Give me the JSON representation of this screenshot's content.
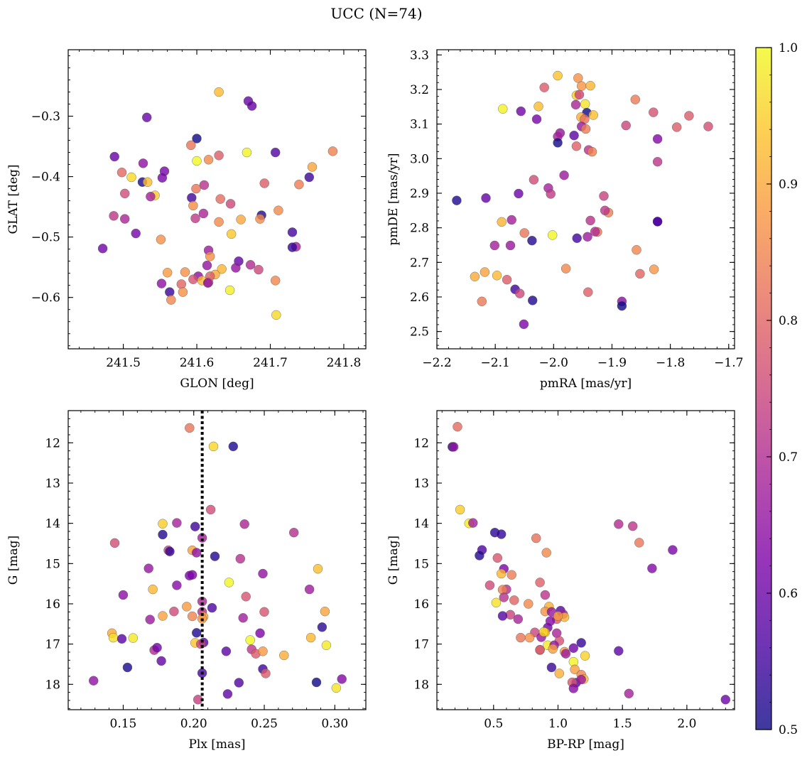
{
  "figure": {
    "title": "UCC (N=74)"
  },
  "colorbar": {
    "min": 0.5,
    "max": 1.0,
    "ticks": [
      "0.5",
      "0.6",
      "0.7",
      "0.8",
      "0.9",
      "1.0"
    ]
  },
  "chart_data": [
    {
      "type": "scatter",
      "name": "glon-glat",
      "xlabel": "GLON [deg]",
      "ylabel": "GLAT [deg]",
      "xlim": [
        241.425,
        241.83
      ],
      "ylim": [
        -0.685,
        -0.19
      ],
      "invert_y": false,
      "xticks": [
        241.5,
        241.6,
        241.7,
        241.8
      ],
      "xtick_labels": [
        "241.5",
        "241.6",
        "241.7",
        "241.8"
      ],
      "xminor_step": 0.02,
      "yticks": [
        -0.3,
        -0.4,
        -0.5,
        -0.6
      ],
      "ytick_labels": [
        "−0.3",
        "−0.4",
        "−0.5",
        "−0.6"
      ],
      "yminor_step": 0.02,
      "points": [
        [
          241.63,
          -0.26
        ],
        [
          241.67,
          -0.275
        ],
        [
          241.675,
          -0.283
        ],
        [
          241.532,
          -0.302
        ],
        [
          241.6,
          -0.337
        ],
        [
          241.592,
          -0.348
        ],
        [
          241.785,
          -0.358
        ],
        [
          241.668,
          -0.36
        ],
        [
          241.707,
          -0.36
        ],
        [
          241.63,
          -0.365
        ],
        [
          241.488,
          -0.367
        ],
        [
          241.616,
          -0.372
        ],
        [
          241.6,
          -0.374
        ],
        [
          241.527,
          -0.378
        ],
        [
          241.757,
          -0.384
        ],
        [
          241.556,
          -0.391
        ],
        [
          241.498,
          -0.393
        ],
        [
          241.511,
          -0.401
        ],
        [
          241.553,
          -0.402
        ],
        [
          241.753,
          -0.401
        ],
        [
          241.526,
          -0.409
        ],
        [
          241.533,
          -0.409
        ],
        [
          241.692,
          -0.411
        ],
        [
          241.739,
          -0.413
        ],
        [
          241.61,
          -0.414
        ],
        [
          241.599,
          -0.42
        ],
        [
          241.502,
          -0.428
        ],
        [
          241.543,
          -0.431
        ],
        [
          241.537,
          -0.433
        ],
        [
          241.593,
          -0.435
        ],
        [
          241.632,
          -0.437
        ],
        [
          241.646,
          -0.445
        ],
        [
          241.595,
          -0.448
        ],
        [
          241.711,
          -0.456
        ],
        [
          241.609,
          -0.461
        ],
        [
          241.688,
          -0.464
        ],
        [
          241.487,
          -0.465
        ],
        [
          241.502,
          -0.47
        ],
        [
          241.598,
          -0.469
        ],
        [
          241.686,
          -0.47
        ],
        [
          241.63,
          -0.475
        ],
        [
          241.66,
          -0.471
        ],
        [
          241.517,
          -0.494
        ],
        [
          241.647,
          -0.495
        ],
        [
          241.73,
          -0.492
        ],
        [
          241.551,
          -0.504
        ],
        [
          241.735,
          -0.516
        ],
        [
          241.73,
          -0.517
        ],
        [
          241.472,
          -0.519
        ],
        [
          241.616,
          -0.522
        ],
        [
          241.618,
          -0.532
        ],
        [
          241.657,
          -0.54
        ],
        [
          241.673,
          -0.546
        ],
        [
          241.614,
          -0.547
        ],
        [
          241.634,
          -0.553
        ],
        [
          241.684,
          -0.554
        ],
        [
          241.56,
          -0.559
        ],
        [
          241.584,
          -0.558
        ],
        [
          241.625,
          -0.562
        ],
        [
          241.602,
          -0.565
        ],
        [
          241.618,
          -0.565
        ],
        [
          241.595,
          -0.57
        ],
        [
          241.607,
          -0.572
        ],
        [
          241.707,
          -0.572
        ],
        [
          241.616,
          -0.575
        ],
        [
          241.615,
          -0.576
        ],
        [
          241.552,
          -0.577
        ],
        [
          241.579,
          -0.578
        ],
        [
          241.645,
          -0.588
        ],
        [
          241.563,
          -0.591
        ],
        [
          241.581,
          -0.591
        ],
        [
          241.565,
          -0.604
        ],
        [
          241.708,
          -0.629
        ],
        [
          241.653,
          -0.551
        ]
      ]
    },
    {
      "type": "scatter",
      "name": "pmra-pmde",
      "xlabel": "pmRA [mas/yr]",
      "ylabel": "pmDE [mas/yr]",
      "xlim": [
        -2.2,
        -1.69
      ],
      "ylim": [
        2.45,
        3.315
      ],
      "invert_y": false,
      "xticks": [
        -2.2,
        -2.1,
        -2.0,
        -1.9,
        -1.8,
        -1.7
      ],
      "xtick_labels": [
        "−2.2",
        "−2.1",
        "−2.0",
        "−1.9",
        "−1.8",
        "−1.7"
      ],
      "xminor_step": 0.02,
      "yticks": [
        2.5,
        2.6,
        2.7,
        2.8,
        2.9,
        3.0,
        3.1,
        3.2,
        3.3
      ],
      "ytick_labels": [
        "2.5",
        "2.6",
        "2.7",
        "2.8",
        "2.9",
        "3.0",
        "3.1",
        "3.2",
        "3.3"
      ],
      "yminor_step": 0.02,
      "points": [
        [
          -1.993,
          3.24
        ],
        [
          -1.958,
          3.233
        ],
        [
          -2.016,
          3.206
        ],
        [
          -1.952,
          3.21
        ],
        [
          -1.937,
          3.211
        ],
        [
          -1.961,
          3.183
        ],
        [
          -1.956,
          3.185
        ],
        [
          -1.86,
          3.171
        ],
        [
          -2.026,
          3.151
        ],
        [
          -1.962,
          3.156
        ],
        [
          -1.946,
          3.158
        ],
        [
          -2.087,
          3.144
        ],
        [
          -2.056,
          3.137
        ],
        [
          -1.943,
          3.133
        ],
        [
          -1.829,
          3.134
        ],
        [
          -1.932,
          3.126
        ],
        [
          -1.953,
          3.12
        ],
        [
          -1.768,
          3.124
        ],
        [
          -2.029,
          3.114
        ],
        [
          -1.947,
          3.114
        ],
        [
          -1.952,
          3.093
        ],
        [
          -1.876,
          3.096
        ],
        [
          -1.735,
          3.093
        ],
        [
          -1.789,
          3.091
        ],
        [
          -1.945,
          3.086
        ],
        [
          -1.989,
          3.074
        ],
        [
          -1.965,
          3.067
        ],
        [
          -1.993,
          3.064
        ],
        [
          -1.822,
          3.057
        ],
        [
          -1.993,
          3.046
        ],
        [
          -1.961,
          3.036
        ],
        [
          -1.94,
          3.025
        ],
        [
          -1.934,
          3.02
        ],
        [
          -1.822,
          2.991
        ],
        [
          -1.982,
          2.952
        ],
        [
          -2.034,
          2.939
        ],
        [
          -2.009,
          2.915
        ],
        [
          -2.06,
          2.899
        ],
        [
          -2.005,
          2.898
        ],
        [
          -1.914,
          2.892
        ],
        [
          -2.116,
          2.886
        ],
        [
          -2.166,
          2.879
        ],
        [
          -1.906,
          2.844
        ],
        [
          -1.912,
          2.85
        ],
        [
          -2.072,
          2.823
        ],
        [
          -2.089,
          2.817
        ],
        [
          -1.937,
          2.821
        ],
        [
          -1.822,
          2.818
        ],
        [
          -1.925,
          2.788
        ],
        [
          -2.05,
          2.785
        ],
        [
          -2.002,
          2.779
        ],
        [
          -1.96,
          2.77
        ],
        [
          -1.942,
          2.774
        ],
        [
          -2.037,
          2.763
        ],
        [
          -2.101,
          2.749
        ],
        [
          -2.074,
          2.749
        ],
        [
          -1.858,
          2.736
        ],
        [
          -1.979,
          2.682
        ],
        [
          -1.828,
          2.68
        ],
        [
          -2.118,
          2.672
        ],
        [
          -1.852,
          2.667
        ],
        [
          -2.097,
          2.662
        ],
        [
          -2.135,
          2.659
        ],
        [
          -2.08,
          2.65
        ],
        [
          -2.066,
          2.622
        ],
        [
          -1.941,
          2.614
        ],
        [
          -2.058,
          2.61
        ],
        [
          -2.036,
          2.59
        ],
        [
          -1.883,
          2.587
        ],
        [
          -2.123,
          2.587
        ],
        [
          -1.883,
          2.574
        ],
        [
          -2.051,
          2.521
        ],
        [
          -1.822,
          2.818
        ],
        [
          -1.929,
          2.789
        ]
      ]
    },
    {
      "type": "scatter",
      "name": "plx-g",
      "xlabel": "Plx [mas]",
      "ylabel": "G [mag]",
      "xlim": [
        0.111,
        0.322
      ],
      "ylim": [
        11.2,
        18.63
      ],
      "invert_y": true,
      "vline": 0.206,
      "xticks": [
        0.15,
        0.2,
        0.25,
        0.3
      ],
      "xtick_labels": [
        "0.15",
        "0.20",
        "0.25",
        "0.30"
      ],
      "xminor_step": 0.01,
      "yticks": [
        12,
        13,
        14,
        15,
        16,
        17,
        18
      ],
      "ytick_labels": [
        "12",
        "13",
        "14",
        "15",
        "16",
        "17",
        "18"
      ],
      "yminor_step": 0.2,
      "points": [
        [
          0.197,
          11.63
        ],
        [
          0.214,
          12.09
        ],
        [
          0.228,
          12.09
        ],
        [
          0.212,
          13.66
        ],
        [
          0.178,
          14.01
        ],
        [
          0.188,
          13.99
        ],
        [
          0.236,
          14.02
        ],
        [
          0.271,
          14.23
        ],
        [
          0.201,
          14.08
        ],
        [
          0.206,
          14.36
        ],
        [
          0.144,
          14.49
        ],
        [
          0.178,
          14.28
        ],
        [
          0.182,
          14.67
        ],
        [
          0.199,
          14.67
        ],
        [
          0.202,
          14.73
        ],
        [
          0.215,
          14.82
        ],
        [
          0.233,
          14.88
        ],
        [
          0.168,
          15.12
        ],
        [
          0.288,
          15.13
        ],
        [
          0.249,
          15.25
        ],
        [
          0.199,
          15.28
        ],
        [
          0.188,
          15.54
        ],
        [
          0.225,
          15.47
        ],
        [
          0.171,
          15.64
        ],
        [
          0.282,
          15.64
        ],
        [
          0.15,
          15.78
        ],
        [
          0.237,
          15.82
        ],
        [
          0.206,
          15.94
        ],
        [
          0.195,
          16.07
        ],
        [
          0.186,
          16.19
        ],
        [
          0.206,
          16.2
        ],
        [
          0.25,
          16.2
        ],
        [
          0.293,
          16.19
        ],
        [
          0.199,
          16.31
        ],
        [
          0.207,
          16.32
        ],
        [
          0.235,
          16.35
        ],
        [
          0.169,
          16.39
        ],
        [
          0.206,
          16.37
        ],
        [
          0.178,
          16.3
        ],
        [
          0.291,
          16.58
        ],
        [
          0.202,
          16.72
        ],
        [
          0.142,
          16.73
        ],
        [
          0.247,
          16.73
        ],
        [
          0.283,
          16.84
        ],
        [
          0.143,
          16.84
        ],
        [
          0.149,
          16.87
        ],
        [
          0.157,
          16.85
        ],
        [
          0.201,
          16.97
        ],
        [
          0.207,
          16.96
        ],
        [
          0.294,
          17.03
        ],
        [
          0.172,
          17.15
        ],
        [
          0.174,
          17.09
        ],
        [
          0.223,
          17.18
        ],
        [
          0.241,
          17.13
        ],
        [
          0.244,
          17.24
        ],
        [
          0.249,
          17.18
        ],
        [
          0.264,
          17.28
        ],
        [
          0.177,
          17.42
        ],
        [
          0.249,
          17.62
        ],
        [
          0.251,
          17.73
        ],
        [
          0.206,
          17.72
        ],
        [
          0.153,
          17.58
        ],
        [
          0.232,
          17.96
        ],
        [
          0.287,
          17.95
        ],
        [
          0.129,
          17.91
        ],
        [
          0.305,
          17.87
        ],
        [
          0.301,
          18.09
        ],
        [
          0.224,
          18.24
        ],
        [
          0.203,
          18.38
        ],
        [
          0.183,
          14.7
        ],
        [
          0.197,
          15.3
        ],
        [
          0.213,
          16.1
        ],
        [
          0.205,
          17.0
        ],
        [
          0.24,
          16.9
        ]
      ]
    },
    {
      "type": "scatter",
      "name": "bprp-g",
      "xlabel": "BP-RP [mag]",
      "ylabel": "G [mag]",
      "xlim": [
        0.06,
        2.37
      ],
      "ylim": [
        11.2,
        18.63
      ],
      "invert_y": true,
      "xticks": [
        0.5,
        1.0,
        1.5,
        2.0
      ],
      "xtick_labels": [
        "0.5",
        "1.0",
        "1.5",
        "2.0"
      ],
      "xminor_step": 0.1,
      "yticks": [
        12,
        13,
        14,
        15,
        16,
        17,
        18
      ],
      "ytick_labels": [
        "12",
        "13",
        "14",
        "15",
        "16",
        "17",
        "18"
      ],
      "yminor_step": 0.2,
      "points": [
        [
          0.22,
          11.6
        ],
        [
          0.18,
          12.1
        ],
        [
          0.19,
          12.1
        ],
        [
          0.24,
          13.66
        ],
        [
          0.31,
          14.0
        ],
        [
          0.34,
          13.99
        ],
        [
          1.47,
          14.02
        ],
        [
          1.58,
          14.07
        ],
        [
          0.51,
          14.23
        ],
        [
          0.56,
          14.27
        ],
        [
          0.83,
          14.37
        ],
        [
          1.63,
          14.48
        ],
        [
          0.41,
          14.66
        ],
        [
          0.39,
          14.8
        ],
        [
          1.89,
          14.66
        ],
        [
          0.53,
          14.86
        ],
        [
          0.91,
          14.73
        ],
        [
          1.73,
          15.12
        ],
        [
          0.58,
          15.13
        ],
        [
          0.56,
          15.25
        ],
        [
          0.64,
          15.28
        ],
        [
          0.86,
          15.47
        ],
        [
          0.47,
          15.54
        ],
        [
          0.6,
          15.64
        ],
        [
          0.57,
          15.65
        ],
        [
          0.9,
          15.78
        ],
        [
          0.58,
          15.84
        ],
        [
          0.66,
          15.91
        ],
        [
          0.52,
          15.97
        ],
        [
          0.77,
          16.0
        ],
        [
          0.93,
          16.07
        ],
        [
          0.9,
          16.19
        ],
        [
          1.02,
          16.17
        ],
        [
          0.95,
          16.2
        ],
        [
          1.04,
          16.26
        ],
        [
          0.63,
          16.27
        ],
        [
          0.57,
          16.3
        ],
        [
          1.05,
          16.33
        ],
        [
          0.69,
          16.38
        ],
        [
          0.99,
          16.38
        ],
        [
          0.94,
          16.43
        ],
        [
          0.92,
          16.59
        ],
        [
          0.99,
          16.73
        ],
        [
          0.9,
          16.71
        ],
        [
          0.82,
          16.71
        ],
        [
          0.78,
          16.84
        ],
        [
          0.87,
          16.83
        ],
        [
          0.71,
          16.84
        ],
        [
          1.01,
          16.92
        ],
        [
          1.18,
          16.97
        ],
        [
          0.92,
          17.03
        ],
        [
          0.97,
          17.03
        ],
        [
          1.12,
          17.1
        ],
        [
          0.96,
          17.12
        ],
        [
          1.47,
          17.17
        ],
        [
          1.05,
          17.19
        ],
        [
          0.86,
          17.15
        ],
        [
          0.86,
          17.14
        ],
        [
          1.21,
          17.29
        ],
        [
          1.06,
          17.24
        ],
        [
          1.12,
          17.44
        ],
        [
          1.13,
          17.63
        ],
        [
          1.01,
          17.73
        ],
        [
          1.18,
          17.76
        ],
        [
          0.95,
          17.58
        ],
        [
          1.14,
          17.96
        ],
        [
          1.2,
          17.87
        ],
        [
          1.11,
          17.95
        ],
        [
          1.12,
          18.1
        ],
        [
          1.55,
          18.23
        ],
        [
          2.3,
          18.38
        ],
        [
          1.18,
          17.88
        ],
        [
          0.89,
          16.7
        ],
        [
          1.0,
          16.3
        ]
      ]
    }
  ]
}
